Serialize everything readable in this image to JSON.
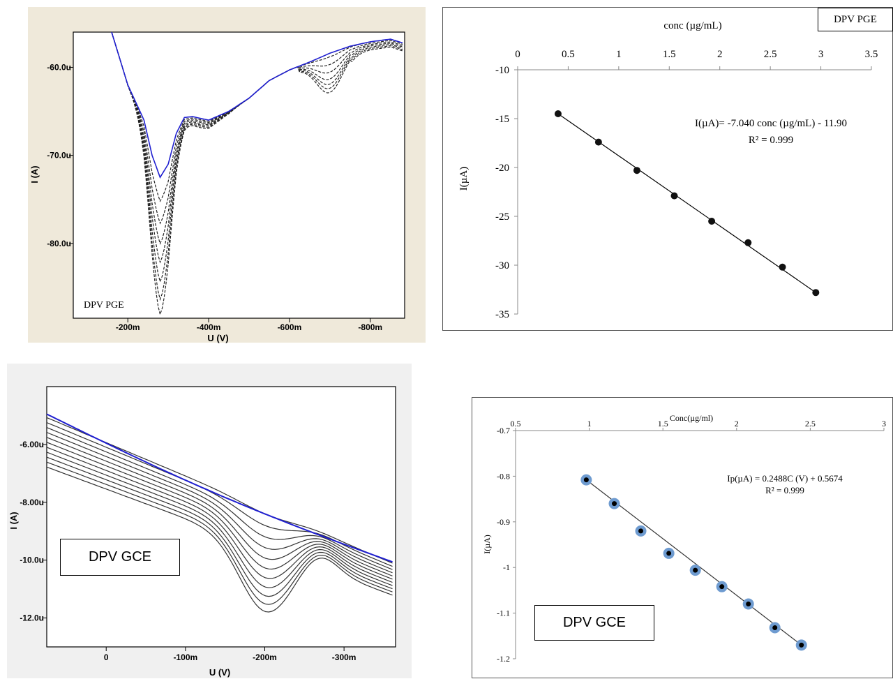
{
  "chart_data": [
    {
      "id": "dpv-pge-voltammogram",
      "type": "line",
      "label": "DPV PGE",
      "xlabel": "U (V)",
      "ylabel": "I (A)",
      "xlim": [
        -0.065,
        -0.885
      ],
      "ylim": [
        -56.0,
        -88.5
      ],
      "x_ticks": [
        {
          "v": -0.2,
          "label": "-200m"
        },
        {
          "v": -0.4,
          "label": "-400m"
        },
        {
          "v": -0.6,
          "label": "-600m"
        },
        {
          "v": -0.8,
          "label": "-800m"
        }
      ],
      "y_ticks": [
        {
          "v": -60,
          "label": "-60.0u"
        },
        {
          "v": -70,
          "label": "-70.0u"
        },
        {
          "v": -80,
          "label": "-80.0u"
        }
      ],
      "baseline": {
        "x": [
          -0.16,
          -0.2,
          -0.24,
          -0.26,
          -0.28,
          -0.3,
          -0.32,
          -0.34,
          -0.36,
          -0.4,
          -0.45,
          -0.5,
          -0.55,
          -0.6,
          -0.65,
          -0.7,
          -0.75,
          -0.8,
          -0.85,
          -0.885
        ],
        "y": [
          -56.0,
          -62.0,
          -66.0,
          -70.0,
          -72.5,
          -71.0,
          -67.5,
          -65.7,
          -65.6,
          -66.0,
          -65.0,
          -63.5,
          -61.5,
          -60.3,
          -59.4,
          -58.4,
          -57.6,
          -57.1,
          -56.8,
          -57.3
        ]
      },
      "troughs": [
        -75.2,
        -77.7,
        -80.0,
        -82.1,
        -84.3,
        -86.3,
        -88.0
      ],
      "hump_dips": [
        -59.8,
        -60.6,
        -61.4,
        -62.1,
        -62.6,
        -63.0,
        -63.4
      ]
    },
    {
      "id": "dpv-pge-calibration",
      "type": "scatter",
      "label": "DPV PGE",
      "xlabel": "conc (µg/mL)",
      "ylabel": "I(µA)",
      "xlim": [
        0,
        3.5
      ],
      "ylim": [
        -35,
        -10
      ],
      "x_ticks": [
        0,
        0.5,
        1,
        1.5,
        2,
        2.5,
        3,
        3.5
      ],
      "y_ticks": [
        -10,
        -15,
        -20,
        -25,
        -30,
        -35
      ],
      "points": [
        {
          "x": 0.4,
          "y": -14.5
        },
        {
          "x": 0.8,
          "y": -17.4
        },
        {
          "x": 1.18,
          "y": -20.3
        },
        {
          "x": 1.55,
          "y": -22.9
        },
        {
          "x": 1.92,
          "y": -25.5
        },
        {
          "x": 2.28,
          "y": -27.7
        },
        {
          "x": 2.62,
          "y": -30.2
        },
        {
          "x": 2.95,
          "y": -32.8
        }
      ],
      "equation": "I(µA)= -7.040 conc (µg/mL) - 11.90",
      "r2": "R² = 0.999"
    },
    {
      "id": "dpv-gce-voltammogram",
      "type": "line",
      "label": "DPV GCE",
      "xlabel": "U (V)",
      "ylabel": "I (A)",
      "xlim": [
        0.075,
        -0.365
      ],
      "ylim": [
        -4.0,
        -13.0
      ],
      "x_ticks": [
        {
          "v": 0,
          "label": "0"
        },
        {
          "v": -0.1,
          "label": "-100m"
        },
        {
          "v": -0.2,
          "label": "-200m"
        },
        {
          "v": -0.3,
          "label": "-300m"
        }
      ],
      "y_ticks": [
        {
          "v": -6,
          "label": "-6.00u"
        },
        {
          "v": -8,
          "label": "-8.00u"
        },
        {
          "v": -10,
          "label": "-10.0u"
        },
        {
          "v": -12,
          "label": "-12.0u"
        }
      ],
      "blue_start": -4.95,
      "blue_end": -10.1,
      "peak_depths": [
        0.15,
        0.42,
        0.68,
        0.92,
        1.15,
        1.36,
        1.56,
        1.75,
        1.92,
        2.07,
        2.2
      ],
      "curve_count": 12
    },
    {
      "id": "dpv-gce-calibration",
      "type": "scatter",
      "label": "DPV GCE",
      "xlabel": "Conc(µg/ml)",
      "ylabel": "I(µA)",
      "xlim": [
        0.5,
        3
      ],
      "ylim": [
        -1.2,
        -0.7
      ],
      "x_ticks": [
        0.5,
        1,
        1.5,
        2,
        2.5,
        3
      ],
      "y_ticks": [
        -0.7,
        -0.8,
        -0.9,
        -1,
        -1.1,
        -1.2
      ],
      "points": [
        {
          "x": 0.98,
          "y": -0.808
        },
        {
          "x": 1.17,
          "y": -0.86
        },
        {
          "x": 1.35,
          "y": -0.92
        },
        {
          "x": 1.54,
          "y": -0.969
        },
        {
          "x": 1.72,
          "y": -1.006
        },
        {
          "x": 1.9,
          "y": -1.042
        },
        {
          "x": 2.08,
          "y": -1.08
        },
        {
          "x": 2.26,
          "y": -1.132
        },
        {
          "x": 2.44,
          "y": -1.17
        }
      ],
      "equation": "Ip(µA) = 0.2488C  (V) + 0.5674",
      "r2": "R² = 0.999"
    }
  ],
  "colors": {
    "blue_curve": "#1f1fd0",
    "black_curve": "#222222",
    "marker_ring": "#6e9bd0",
    "plot_bg_pge": "#efe9da",
    "plot_bg_gce": "#f0f0f0"
  }
}
